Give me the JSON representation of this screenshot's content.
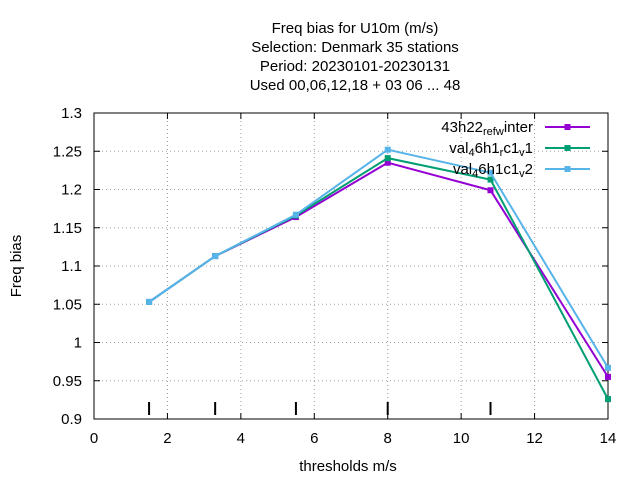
{
  "chart_data": {
    "type": "line",
    "title_lines": [
      "Freq bias  for U10m (m/s)",
      "Selection: Denmark     35 stations",
      "Period: 20230101-20230131",
      "Used  00,06,12,18  + 03 06 ... 48"
    ],
    "xlabel": "thresholds m/s",
    "ylabel": "Freq bias",
    "xlim": [
      0,
      14
    ],
    "ylim": [
      0.9,
      1.3
    ],
    "xticks": [
      0,
      2,
      4,
      6,
      8,
      10,
      12,
      14
    ],
    "yticks": [
      0.9,
      0.95,
      1.0,
      1.05,
      1.1,
      1.15,
      1.2,
      1.25,
      1.3
    ],
    "ytick_labels": [
      "0.9",
      "0.95",
      "1",
      "1.05",
      "1.1",
      "1.15",
      "1.2",
      "1.25",
      "1.3"
    ],
    "grid": true,
    "legend_position": "top-right",
    "threshold_markers": [
      1.5,
      3.3,
      5.5,
      8.0,
      10.8
    ],
    "series": [
      {
        "name": "43h22_ref_winter",
        "name_base": "43h22",
        "name_parts": [
          [
            "ref",
            "sub"
          ],
          [
            "w",
            "sub"
          ],
          [
            "inter",
            ""
          ]
        ],
        "color": "#9400d3",
        "x": [
          1.5,
          3.3,
          5.5,
          8.0,
          10.8,
          14.0
        ],
        "y": [
          1.053,
          1.113,
          1.164,
          1.235,
          1.199,
          0.955
        ]
      },
      {
        "name": "val_46h1_rc1_v1",
        "name_base": "val",
        "name_parts": [
          [
            "4",
            "sub"
          ],
          [
            "6h1",
            ""
          ],
          [
            "r",
            "sub"
          ],
          [
            "c1",
            ""
          ],
          [
            "v",
            "sub"
          ],
          [
            "1",
            ""
          ]
        ],
        "color": "#009e73",
        "x": [
          1.5,
          3.3,
          5.5,
          8.0,
          10.8,
          14.0
        ],
        "y": [
          1.053,
          1.113,
          1.166,
          1.241,
          1.213,
          0.926
        ]
      },
      {
        "name": "val_46h1_c1_v2",
        "name_base": "val",
        "name_parts": [
          [
            "4",
            "sub"
          ],
          [
            "6h1",
            ""
          ],
          [
            "c1",
            ""
          ],
          [
            "v",
            "sub"
          ],
          [
            "2",
            ""
          ]
        ],
        "color": "#56b4e9",
        "x": [
          1.5,
          3.3,
          5.5,
          8.0,
          10.8,
          14.0
        ],
        "y": [
          1.053,
          1.113,
          1.167,
          1.252,
          1.222,
          0.967
        ]
      }
    ]
  }
}
